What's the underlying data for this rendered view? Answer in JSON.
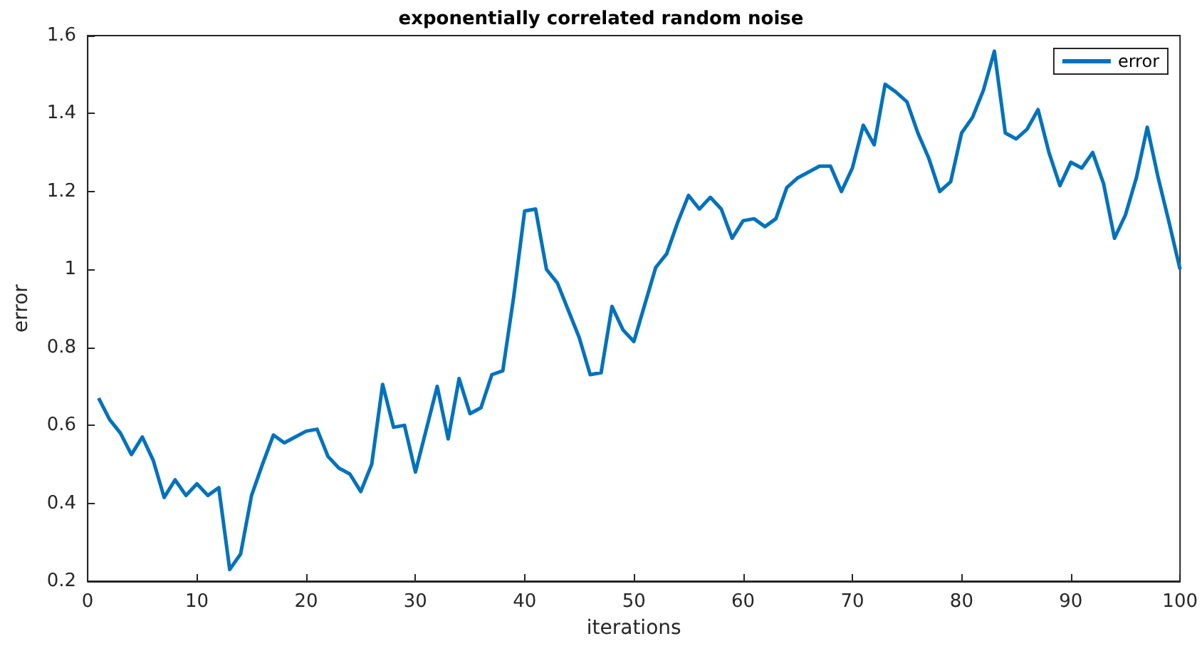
{
  "chart_data": {
    "type": "line",
    "title": "exponentially correlated random noise",
    "xlabel": "iterations",
    "ylabel": "error",
    "x": [
      1,
      2,
      3,
      4,
      5,
      6,
      7,
      8,
      9,
      10,
      11,
      12,
      13,
      14,
      15,
      16,
      17,
      18,
      19,
      20,
      21,
      22,
      23,
      24,
      25,
      26,
      27,
      28,
      29,
      30,
      31,
      32,
      33,
      34,
      35,
      36,
      37,
      38,
      39,
      40,
      41,
      42,
      43,
      44,
      45,
      46,
      47,
      48,
      49,
      50,
      51,
      52,
      53,
      54,
      55,
      56,
      57,
      58,
      59,
      60,
      61,
      62,
      63,
      64,
      65,
      66,
      67,
      68,
      69,
      70,
      71,
      72,
      73,
      74,
      75,
      76,
      77,
      78,
      79,
      80,
      81,
      82,
      83,
      84,
      85,
      86,
      87,
      88,
      89,
      90,
      91,
      92,
      93,
      94,
      95,
      96,
      97,
      98,
      99,
      100
    ],
    "series": [
      {
        "name": "error",
        "color": "#0072bd",
        "values": [
          0.67,
          0.615,
          0.58,
          0.525,
          0.57,
          0.51,
          0.415,
          0.46,
          0.42,
          0.45,
          0.42,
          0.44,
          0.23,
          0.27,
          0.42,
          0.5,
          0.575,
          0.555,
          0.57,
          0.585,
          0.59,
          0.52,
          0.49,
          0.475,
          0.43,
          0.5,
          0.705,
          0.595,
          0.6,
          0.48,
          0.59,
          0.7,
          0.565,
          0.72,
          0.63,
          0.645,
          0.73,
          0.74,
          0.93,
          1.15,
          1.155,
          1.0,
          0.965,
          0.895,
          0.825,
          0.73,
          0.735,
          0.905,
          0.845,
          0.815,
          0.91,
          1.005,
          1.04,
          1.12,
          1.19,
          1.155,
          1.185,
          1.155,
          1.08,
          1.125,
          1.13,
          1.11,
          1.13,
          1.21,
          1.235,
          1.25,
          1.265,
          1.265,
          1.2,
          1.26,
          1.37,
          1.32,
          1.475,
          1.455,
          1.43,
          1.35,
          1.285,
          1.2,
          1.225,
          1.35,
          1.39,
          1.46,
          1.56,
          1.35,
          1.335,
          1.36,
          1.41,
          1.3,
          1.215,
          1.275,
          1.26,
          1.3,
          1.22,
          1.08,
          1.14,
          1.235,
          1.365,
          1.235,
          1.12,
          1.0
        ]
      }
    ],
    "xlim": [
      0,
      100
    ],
    "xticks": [
      0,
      10,
      20,
      30,
      40,
      50,
      60,
      70,
      80,
      90,
      100
    ],
    "ylim": [
      0.2,
      1.6
    ],
    "yticks": [
      0.2,
      0.4,
      0.6,
      0.8,
      1,
      1.2,
      1.4,
      1.6
    ],
    "grid": false,
    "legend": "top right",
    "marker": "none",
    "line_style": "solid"
  }
}
